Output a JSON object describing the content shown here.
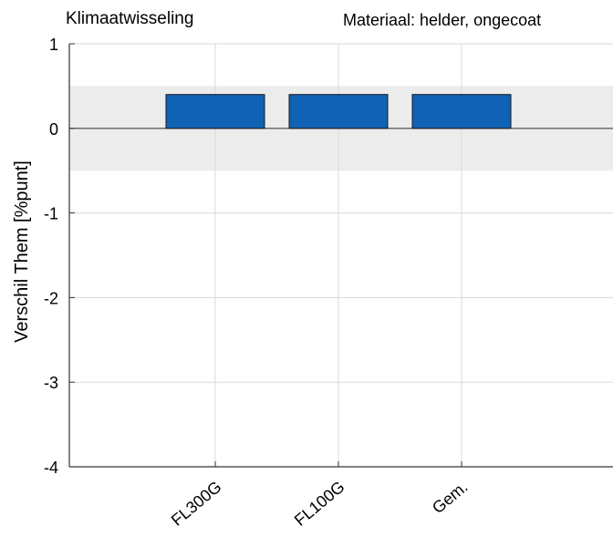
{
  "chart_data": {
    "type": "bar",
    "title": "Klimaatwisseling",
    "subtitle": "Materiaal: helder, ongecoat",
    "ylabel": "Verschil Them [%punt]",
    "xlabel": "",
    "categories": [
      "FL300G",
      "FL100G",
      "Gem."
    ],
    "values": [
      0.4,
      0.4,
      0.4
    ],
    "ylim": [
      -4,
      1
    ],
    "yticks": [
      1,
      0,
      -1,
      -2,
      -3,
      -4
    ],
    "ytick_labels": [
      "1",
      "0",
      "-1",
      "-2",
      "-3",
      "-4"
    ],
    "tolerance_band": [
      -0.5,
      0.5
    ],
    "grid": true,
    "bar_color": "#0f62b4",
    "band_color": "#ececec"
  }
}
